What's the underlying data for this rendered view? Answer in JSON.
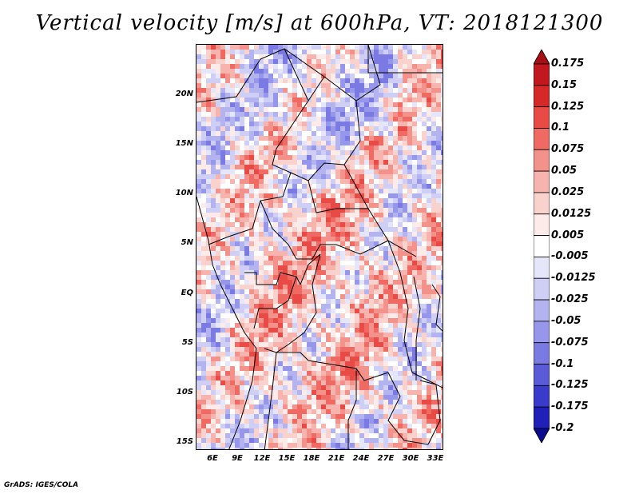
{
  "title": "Vertical velocity [m/s] at 600hPa, VT: 2018121300",
  "footer": "GrADS: IGES/COLA",
  "map": {
    "lat_labels": [
      "20N",
      "15N",
      "10N",
      "5N",
      "EQ",
      "5S",
      "10S",
      "15S"
    ],
    "lon_labels": [
      "6E",
      "9E",
      "12E",
      "15E",
      "18E",
      "21E",
      "24E",
      "27E",
      "30E",
      "33E"
    ],
    "lat_range": [
      -16,
      25
    ],
    "lon_range": [
      4,
      33
    ]
  },
  "colorbar": {
    "labels": [
      "0.175",
      "0.15",
      "0.125",
      "0.1",
      "0.075",
      "0.05",
      "0.025",
      "0.0125",
      "0.005",
      "-0.005",
      "-0.0125",
      "-0.025",
      "-0.05",
      "-0.075",
      "-0.1",
      "-0.125",
      "-0.175",
      "-0.2"
    ],
    "colors": [
      "#a50f15",
      "#c0181e",
      "#d62828",
      "#e84a45",
      "#ef6a63",
      "#f2928a",
      "#f7b3ad",
      "#fad2cd",
      "#fdebe9",
      "#ffffff",
      "#e6e6fb",
      "#cfcff6",
      "#b3b3f0",
      "#9696ea",
      "#7a7ae2",
      "#5b5bd8",
      "#3a3acb",
      "#2020b8",
      "#0b0b8f"
    ]
  }
}
